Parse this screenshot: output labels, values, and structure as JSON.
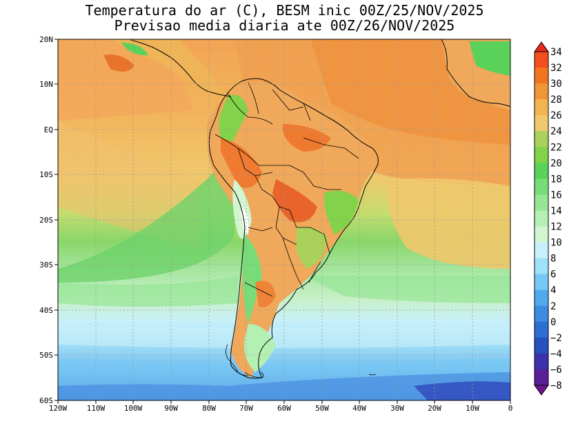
{
  "title": {
    "line1": "Temperatura do ar (C), BESM inic 00Z/25/NOV/2025",
    "line2": "Previsao media diaria ate 00Z/26/NOV/2025"
  },
  "map": {
    "lon_labels": [
      "120W",
      "110W",
      "100W",
      "90W",
      "80W",
      "70W",
      "60W",
      "50W",
      "40W",
      "30W",
      "20W",
      "10W",
      "0"
    ],
    "lat_labels": [
      "20N",
      "10N",
      "EQ",
      "10S",
      "20S",
      "30S",
      "40S",
      "50S",
      "60S"
    ]
  },
  "colorbar": {
    "labels": [
      "34",
      "32",
      "30",
      "28",
      "26",
      "24",
      "22",
      "20",
      "18",
      "16",
      "14",
      "12",
      "10",
      "8",
      "6",
      "4",
      "2",
      "0",
      "-2",
      "-4",
      "-6",
      "-8"
    ],
    "colors": [
      "#e8281c",
      "#f24e1e",
      "#f2741e",
      "#f09636",
      "#f2b450",
      "#f0c86c",
      "#aad25a",
      "#82d24a",
      "#5ad25a",
      "#78dc78",
      "#96e696",
      "#b4f0b4",
      "#d2f5d2",
      "#c8f0fa",
      "#a0e1fa",
      "#78c8f5",
      "#50aaeb",
      "#3c8ce1",
      "#2d6ed2",
      "#2850be",
      "#3c32aa",
      "#5a1e96",
      "#6e148c"
    ]
  }
}
